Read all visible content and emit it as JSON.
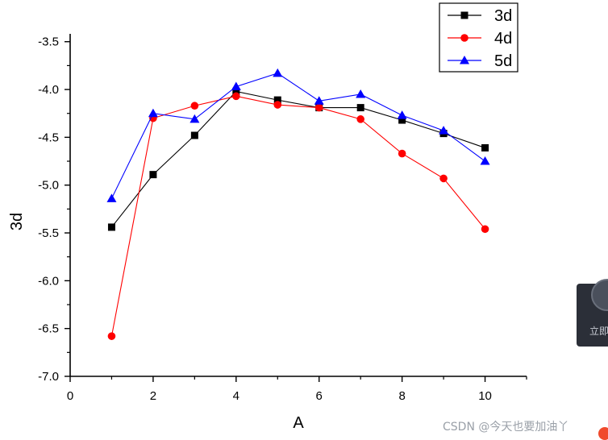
{
  "chart_data": {
    "type": "line",
    "xlabel": "A",
    "ylabel": "3d",
    "xlim": [
      0,
      11
    ],
    "ylim": [
      -7.0,
      -3.3
    ],
    "x_ticks": [
      0,
      2,
      4,
      6,
      8,
      10
    ],
    "x_tick_labels": [
      "0",
      "2",
      "4",
      "6",
      "8",
      "10"
    ],
    "y_ticks": [
      -7.0,
      -6.5,
      -6.0,
      -5.5,
      -5.0,
      -4.5,
      -4.0,
      -3.5
    ],
    "y_tick_labels": [
      "-7.0",
      "-6.5",
      "-6.0",
      "-5.5",
      "-5.0",
      "-4.5",
      "-4.0",
      "-3.5"
    ],
    "legend_position": "top-right",
    "x": [
      1,
      2,
      3,
      4,
      5,
      6,
      7,
      8,
      9,
      10
    ],
    "series": [
      {
        "name": "3d",
        "color": "#000000",
        "marker": "square",
        "values": [
          -5.44,
          -4.89,
          -4.48,
          -4.02,
          -4.11,
          -4.19,
          -4.19,
          -4.32,
          -4.46,
          -4.61
        ]
      },
      {
        "name": "4d",
        "color": "#ff0000",
        "marker": "circle",
        "values": [
          -6.58,
          -4.3,
          -4.17,
          -4.07,
          -4.16,
          -4.19,
          -4.31,
          -4.67,
          -4.93,
          -5.46
        ]
      },
      {
        "name": "5d",
        "color": "#0000ff",
        "marker": "triangle",
        "values": [
          -5.14,
          -4.25,
          -4.31,
          -3.97,
          -3.83,
          -4.12,
          -4.05,
          -4.27,
          -4.43,
          -4.75
        ]
      }
    ]
  },
  "overlay": {
    "side_widget_text": "立即",
    "side_widget_icon": "shield-icon",
    "watermark_text": "CSDN @今天也要加油丫",
    "watermark_icon": "csdn-logo-icon"
  }
}
